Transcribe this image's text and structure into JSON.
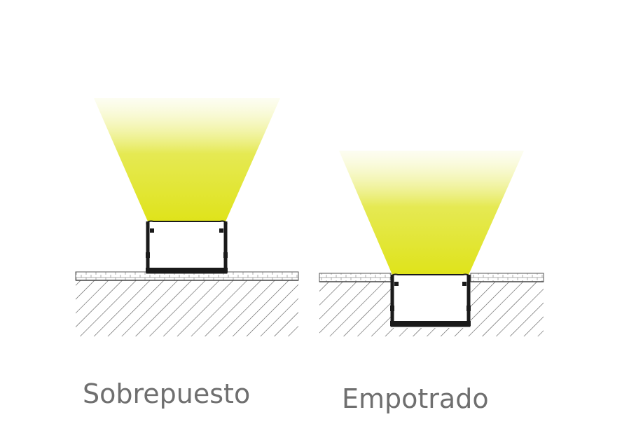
{
  "captions": {
    "surface": "Sobrepuesto",
    "recessed": "Empotrado"
  },
  "colors": {
    "light_beam": "#dfe31a",
    "profile": "#1a1a1a",
    "hatch": "#555555",
    "caption_text": "#6f6f6f"
  }
}
